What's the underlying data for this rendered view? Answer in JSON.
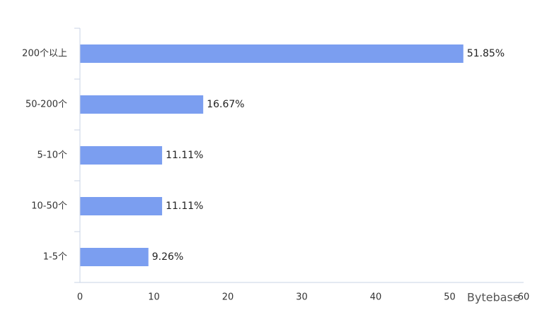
{
  "chart_data": {
    "type": "barh",
    "categories": [
      "200个以上",
      "50-200个",
      "5-10个",
      "10-50个",
      "1-5个"
    ],
    "values": [
      51.85,
      16.67,
      11.11,
      11.11,
      9.26
    ],
    "value_labels": [
      "51.85%",
      "16.67%",
      "11.11%",
      "11.11%",
      "9.26%"
    ],
    "color": "#7b9ef0",
    "xlim": [
      0,
      60
    ],
    "xticks": [
      0,
      10,
      20,
      30,
      40,
      50,
      60
    ],
    "grid": false,
    "watermark": "Bytebase"
  }
}
